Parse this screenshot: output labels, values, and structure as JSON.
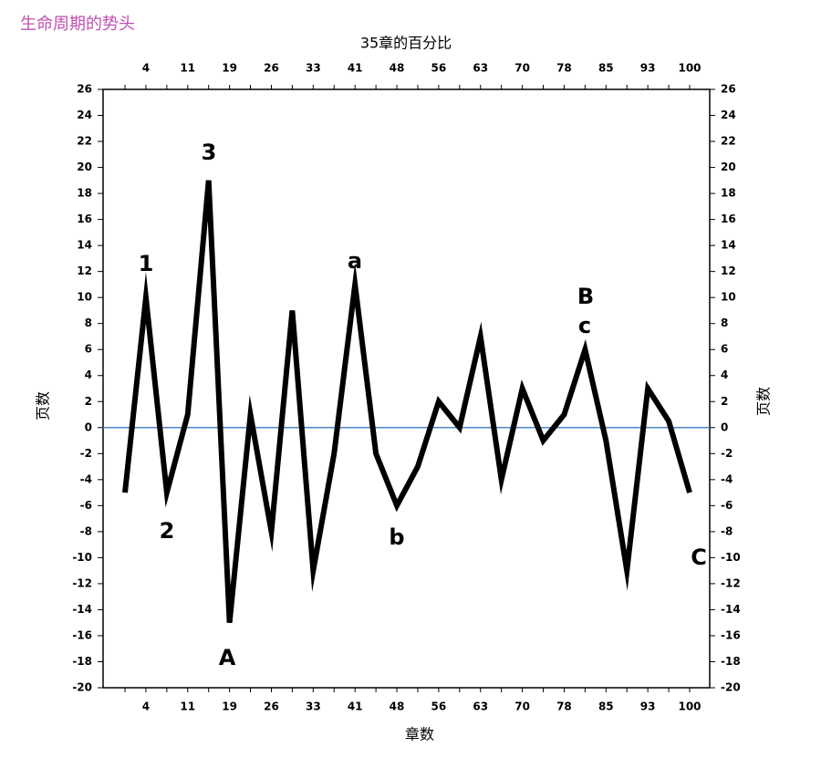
{
  "chart_data": {
    "type": "line",
    "title": "生命周期的势头",
    "x_label_top": "35章的百分比",
    "x_label": "章数",
    "y_label": "页数",
    "y2_label": "页数",
    "categories": [
      null,
      "4",
      null,
      "11",
      null,
      "19",
      null,
      "26",
      null,
      "33",
      null,
      "41",
      null,
      "48",
      null,
      "56",
      null,
      "63",
      null,
      "70",
      null,
      "78",
      null,
      "85",
      null,
      "93",
      null,
      "100"
    ],
    "series": [
      {
        "color": "#000000",
        "values": [
          -5,
          10,
          -5,
          1,
          19,
          -15,
          1,
          -8,
          9,
          -11,
          -2,
          11,
          -2,
          -6,
          -3,
          2,
          0,
          7,
          -4,
          3,
          -1,
          1,
          6,
          -1,
          -11,
          3,
          0.5,
          -5
        ]
      }
    ],
    "ylim": [
      -20,
      26
    ],
    "yticks": [
      -20,
      -18,
      -16,
      -14,
      -12,
      -10,
      -8,
      -6,
      -4,
      -2,
      0,
      2,
      4,
      6,
      8,
      10,
      12,
      14,
      16,
      18,
      20,
      22,
      24,
      26
    ],
    "y2lim": [
      -20,
      26
    ],
    "y2ticks": [
      -20,
      -18,
      -16,
      -14,
      -12,
      -10,
      -8,
      -6,
      -4,
      -2,
      0,
      2,
      4,
      6,
      8,
      10,
      12,
      14,
      16,
      18,
      20,
      22,
      24,
      26
    ],
    "zero_line_color": "#4a86c8",
    "annotations": [
      "1",
      "2",
      "3",
      "A",
      "a",
      "b",
      "B",
      "c",
      "C"
    ]
  }
}
